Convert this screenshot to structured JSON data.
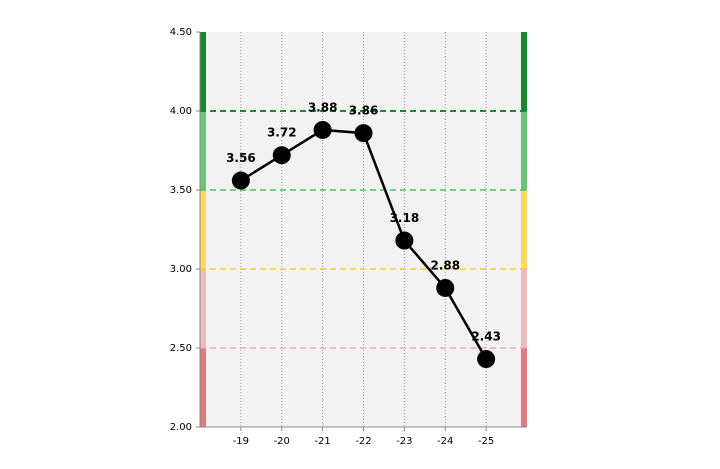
{
  "chart_data": {
    "type": "line",
    "categories": [
      "-19",
      "-20",
      "-21",
      "-22",
      "-23",
      "-24",
      "-25"
    ],
    "values": [
      3.56,
      3.72,
      3.88,
      3.86,
      3.18,
      2.88,
      2.43
    ],
    "color": "#000000",
    "ylim": [
      2,
      4.5
    ],
    "yticks": [
      {
        "value": 2,
        "label": "2.00"
      },
      {
        "value": 2.5,
        "label": "2.50"
      },
      {
        "value": 3,
        "label": "3.00"
      },
      {
        "value": 3.5,
        "label": "3.50"
      },
      {
        "value": 4,
        "label": "4.00"
      },
      {
        "value": 4.5,
        "label": "4.50"
      }
    ],
    "bands": [
      {
        "from": 2,
        "to": 2.5,
        "color": "#e07b7b"
      },
      {
        "from": 2.5,
        "to": 3,
        "color": "#efbcbc"
      },
      {
        "from": 3,
        "to": 3.5,
        "color": "#fdd85c"
      },
      {
        "from": 3.5,
        "to": 4,
        "color": "#68c67a"
      },
      {
        "from": 4,
        "to": 4.5,
        "color": "#148a2c"
      }
    ],
    "thresholds": [
      {
        "value": 2.5,
        "color": "#efaaaa"
      },
      {
        "value": 3,
        "color": "#f5cf2a"
      },
      {
        "value": 3.5,
        "color": "#4cc060"
      },
      {
        "value": 4,
        "color": "#148a2c"
      }
    ]
  }
}
